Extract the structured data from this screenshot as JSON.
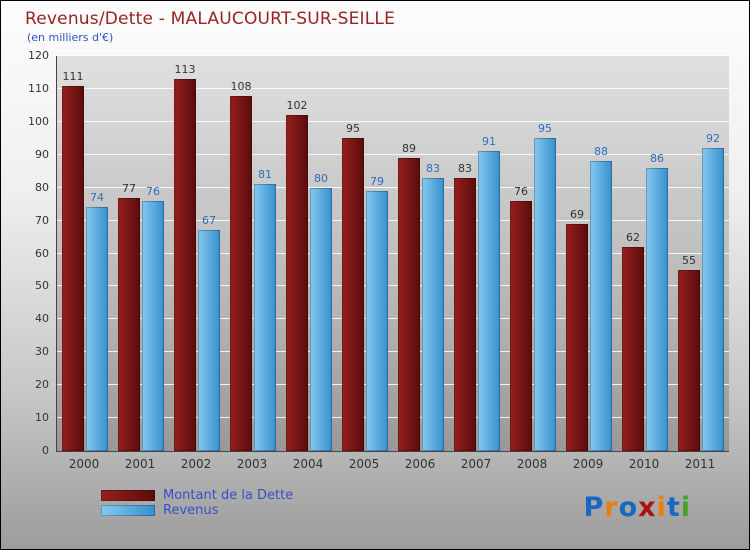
{
  "title": "Revenus/Dette - MALAUCOURT-SUR-SEILLE",
  "subtitle": "(en milliers d'€)",
  "legend": [
    {
      "label": "Montant de la Dette",
      "color_from": "#96201e",
      "color_to": "#5a0c0c"
    },
    {
      "label": "Revenus",
      "color_from": "#85c9f0",
      "color_to": "#3590cf"
    }
  ],
  "logo": {
    "text": "Proxiti",
    "letters": [
      {
        "ch": "P",
        "color": "#1a66c2"
      },
      {
        "ch": "r",
        "color": "#e87e0e"
      },
      {
        "ch": "o",
        "color": "#1a66c2"
      },
      {
        "ch": "x",
        "color": "#aa1111"
      },
      {
        "ch": "i",
        "color": "#e87e0e"
      },
      {
        "ch": "t",
        "color": "#1a66c2"
      },
      {
        "ch": "i",
        "color": "#44a22a"
      }
    ]
  },
  "chart_data": {
    "type": "bar",
    "title": "Revenus/Dette - MALAUCOURT-SUR-SEILLE",
    "subtitle": "(en milliers d'€)",
    "xlabel": "",
    "ylabel": "en milliers d'€",
    "ylim": [
      0,
      120
    ],
    "ytick_step": 10,
    "yticks": [
      0,
      10,
      20,
      30,
      40,
      50,
      60,
      70,
      80,
      90,
      100,
      110,
      120
    ],
    "grid": true,
    "legend_position": "bottom-left",
    "categories": [
      "2000",
      "2001",
      "2002",
      "2003",
      "2004",
      "2005",
      "2006",
      "2007",
      "2008",
      "2009",
      "2010",
      "2011"
    ],
    "series": [
      {
        "name": "Montant de la Dette",
        "color_from": "#96201e",
        "color_to": "#5a0c0c",
        "label_color": "#333333",
        "values": [
          111,
          77,
          113,
          108,
          102,
          95,
          89,
          83,
          76,
          69,
          62,
          55
        ]
      },
      {
        "name": "Revenus",
        "color_from": "#85c9f0",
        "color_to": "#3590cf",
        "label_color": "#2d6fc0",
        "values": [
          74,
          76,
          67,
          81,
          80,
          79,
          83,
          91,
          95,
          88,
          86,
          92
        ]
      }
    ]
  }
}
